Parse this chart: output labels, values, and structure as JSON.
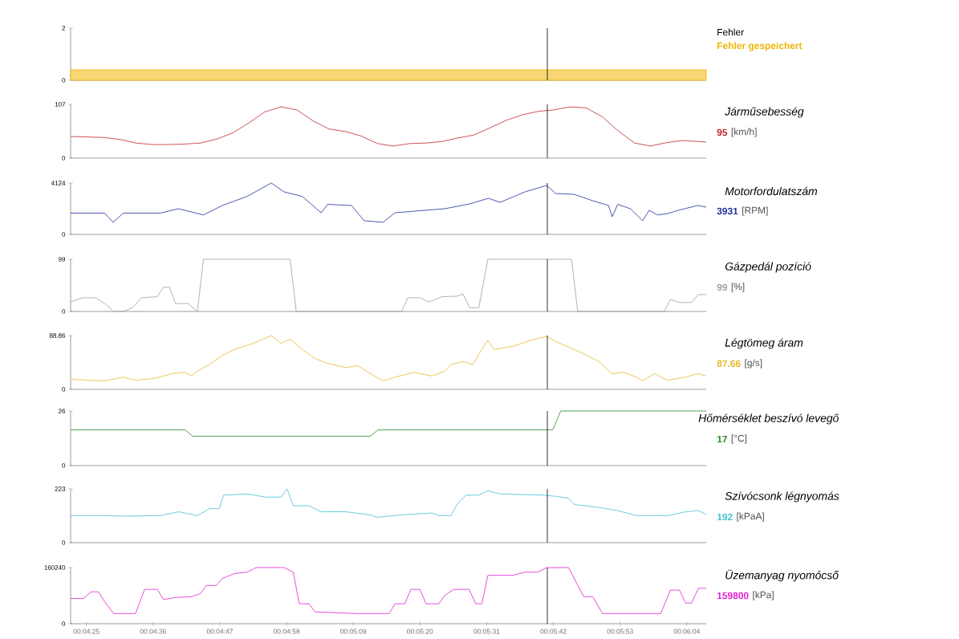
{
  "chart_data": [
    {
      "type": "area",
      "annotations": [
        "Fehler"
      ],
      "x": [
        262.4,
        367.2
      ],
      "xlim": [
        262.4,
        367.2
      ],
      "ylim": [
        0,
        2
      ],
      "yticks": [
        0,
        2
      ],
      "tick_labels": "y",
      "ref_lines": [
        {
          "axis": "x",
          "value": 341,
          "color": "#000000"
        }
      ],
      "series": [
        {
          "name": "Fehler gespeichert",
          "type": "area",
          "color": "#f0b400",
          "values": [
            0.4,
            0.4
          ]
        }
      ]
    },
    {
      "type": "line",
      "annotations": [
        "Járműsebesség",
        "95",
        "[km/h]"
      ],
      "xlim": [
        262.4,
        367.2
      ],
      "ylim": [
        0,
        107
      ],
      "yticks": [
        0,
        107
      ],
      "tick_labels": "y",
      "ref_lines": [
        {
          "axis": "x",
          "value": 341,
          "color": "#000000"
        }
      ],
      "x": [
        262.4,
        265.3,
        267.9,
        270.6,
        273.2,
        275.9,
        278.5,
        281.2,
        283.8,
        286.5,
        289.1,
        291.8,
        294.4,
        297.1,
        299.7,
        302.4,
        305.0,
        307.7,
        310.3,
        313.0,
        315.6,
        318.3,
        320.9,
        323.6,
        326.2,
        328.9,
        331.5,
        334.2,
        336.8,
        339.5,
        342.1,
        344.8,
        347.4,
        350.1,
        352.7,
        355.4,
        358.0,
        360.7,
        363.3,
        366.0,
        367.2
      ],
      "series": [
        {
          "color": "#c0282d",
          "values": [
            43,
            42,
            41,
            37,
            30,
            27,
            27,
            28,
            30,
            38,
            50,
            70,
            92,
            102,
            96,
            74,
            58,
            53,
            44,
            29,
            24,
            29,
            30,
            33,
            40,
            46,
            60,
            75,
            86,
            93,
            96,
            102,
            100,
            82,
            54,
            30,
            24,
            31,
            35,
            33,
            32
          ]
        }
      ]
    },
    {
      "type": "line",
      "annotations": [
        "Motorfordulatszám",
        "3931",
        "[RPM]"
      ],
      "xlim": [
        262.4,
        367.2
      ],
      "ylim": [
        0,
        4124
      ],
      "yticks": [
        0,
        4124
      ],
      "tick_labels": "y",
      "ref_lines": [
        {
          "axis": "x",
          "value": 341,
          "color": "#000000"
        }
      ],
      "x": [
        262.4,
        268.0,
        269.4,
        271.1,
        277.2,
        280.2,
        284.3,
        287.4,
        291.5,
        295.5,
        297.6,
        300.6,
        303.7,
        304.8,
        308.7,
        310.8,
        313.9,
        315.9,
        318.0,
        324.1,
        328.2,
        331.3,
        333.2,
        337.3,
        340.9,
        342.4,
        345.4,
        348.5,
        351.1,
        351.7,
        352.6,
        354.7,
        356.7,
        357.8,
        359.2,
        360.8,
        362.8,
        365.8,
        367.2
      ],
      "series": [
        {
          "color": "#1f2d9c",
          "values": [
            1710,
            1710,
            970,
            1710,
            1710,
            2060,
            1560,
            2320,
            3050,
            4124,
            3410,
            3050,
            1740,
            2410,
            2320,
            1100,
            970,
            1740,
            1820,
            2060,
            2450,
            2900,
            2570,
            3410,
            3931,
            3280,
            3220,
            2700,
            2320,
            1420,
            2410,
            2060,
            1100,
            1930,
            1560,
            1670,
            1960,
            2320,
            2190
          ]
        }
      ]
    },
    {
      "type": "line",
      "annotations": [
        "Gázpedál pozíció",
        "99",
        "[%]"
      ],
      "xlim": [
        262.4,
        367.2
      ],
      "ylim": [
        0,
        99
      ],
      "yticks": [
        0,
        99
      ],
      "tick_labels": "y",
      "ref_lines": [
        {
          "axis": "x",
          "value": 341,
          "color": "#000000"
        }
      ],
      "x": [
        262.4,
        264.4,
        266.5,
        268.0,
        269.5,
        271.1,
        272.6,
        274.1,
        276.7,
        277.7,
        278.7,
        279.7,
        281.8,
        283.3,
        284.3,
        298.6,
        299.6,
        317.0,
        318.0,
        320.0,
        321.5,
        323.6,
        326.1,
        327.1,
        328.2,
        329.7,
        331.2,
        345.0,
        346.0,
        360.3,
        361.3,
        362.8,
        364.8,
        365.9,
        367.2
      ],
      "series": [
        {
          "color": "#a0a0a0",
          "values": [
            18,
            26,
            26,
            15,
            0,
            0,
            7,
            26,
            28,
            46,
            46,
            15,
            15,
            0,
            99,
            99,
            0,
            0,
            26,
            26,
            18,
            28,
            29,
            33,
            7,
            7,
            99,
            99,
            0,
            0,
            23,
            17,
            17,
            32,
            32
          ]
        }
      ]
    },
    {
      "type": "line",
      "annotations": [
        "Légtömeg áram",
        "87.66",
        "[g/s]"
      ],
      "xlim": [
        262.4,
        367.2
      ],
      "ylim": [
        0,
        88.86
      ],
      "yticks": [
        0,
        88.86
      ],
      "tick_labels": "y",
      "ref_lines": [
        {
          "axis": "x",
          "value": 341,
          "color": "#000000"
        }
      ],
      "x": [
        262.4,
        265.0,
        268.0,
        271.1,
        273.1,
        276.2,
        279.2,
        281.3,
        282.3,
        283.3,
        285.3,
        287.4,
        289.4,
        292.5,
        295.5,
        297.1,
        298.6,
        300.6,
        302.7,
        304.7,
        307.8,
        309.8,
        311.8,
        313.9,
        315.9,
        319.0,
        322.0,
        324.1,
        325.1,
        327.1,
        328.7,
        330.2,
        331.2,
        332.2,
        335.3,
        338.3,
        340.9,
        342.4,
        346.5,
        349.5,
        351.6,
        353.6,
        355.7,
        356.7,
        358.7,
        360.8,
        363.8,
        365.9,
        367.2
      ],
      "series": [
        {
          "color": "#e8b828",
          "values": [
            17,
            15,
            14,
            20,
            15,
            18,
            26,
            28,
            22,
            30,
            41,
            56,
            66,
            76,
            88.86,
            76,
            83,
            66,
            51,
            43,
            36,
            39,
            26,
            14,
            20,
            28,
            22,
            30,
            41,
            46,
            41,
            66,
            81,
            66,
            71,
            81,
            87.66,
            79,
            61,
            46,
            26,
            28,
            20,
            14,
            26,
            15,
            20,
            26,
            22
          ]
        }
      ]
    },
    {
      "type": "line",
      "annotations": [
        "Hőmérséklet beszívó levegő",
        "17",
        "[°C]"
      ],
      "xlim": [
        262.4,
        367.2
      ],
      "ylim": [
        0,
        26
      ],
      "yticks": [
        0,
        26
      ],
      "tick_labels": "y",
      "ref_lines": [
        {
          "axis": "x",
          "value": 341,
          "color": "#000000"
        }
      ],
      "x": [
        262.4,
        281.3,
        282.5,
        311.8,
        313.1,
        341.9,
        343.2,
        367.2
      ],
      "series": [
        {
          "color": "#2a8a2a",
          "values": [
            17,
            17,
            14,
            14,
            17,
            17,
            26,
            26
          ]
        }
      ]
    },
    {
      "type": "line",
      "annotations": [
        "Szívócsonk légnyomás",
        "192",
        "[kPaA]"
      ],
      "xlim": [
        262.4,
        367.2
      ],
      "ylim": [
        0,
        223
      ],
      "yticks": [
        0,
        223
      ],
      "tick_labels": "y",
      "ref_lines": [
        {
          "axis": "x",
          "value": 341,
          "color": "#000000"
        }
      ],
      "x": [
        262.4,
        268.0,
        271.1,
        277.2,
        280.2,
        283.3,
        285.3,
        286.9,
        287.6,
        291.5,
        294.5,
        297.1,
        298.1,
        299.1,
        301.7,
        303.7,
        307.8,
        311.8,
        312.9,
        316.9,
        322.0,
        323.1,
        325.1,
        326.1,
        327.6,
        329.7,
        331.2,
        333.2,
        340.4,
        342.4,
        344.5,
        345.5,
        349.5,
        352.6,
        355.7,
        360.8,
        363.8,
        365.9,
        367.2
      ],
      "series": [
        {
          "color": "#40c0d8",
          "values": [
            112,
            112,
            110,
            112,
            128,
            112,
            141,
            141,
            197,
            202,
            189,
            189,
            223,
            153,
            153,
            128,
            128,
            115,
            105,
            115,
            123,
            112,
            112,
            158,
            197,
            197,
            215,
            202,
            197,
            192,
            184,
            158,
            146,
            133,
            112,
            112,
            128,
            133,
            117
          ]
        }
      ]
    },
    {
      "type": "line",
      "annotations": [
        "Üzemanyag nyomócső",
        "159800",
        "[kPa]"
      ],
      "xlim": [
        262.4,
        367.2
      ],
      "ylim": [
        0,
        160240
      ],
      "yticks": [
        0,
        160240
      ],
      "xticks": [
        {
          "value": 265,
          "label": "00:04:25"
        },
        {
          "value": 276,
          "label": "00:04:36"
        },
        {
          "value": 287,
          "label": "00:04:47"
        },
        {
          "value": 298,
          "label": "00:04:58"
        },
        {
          "value": 309,
          "label": "00:05:09"
        },
        {
          "value": 320,
          "label": "00:05:20"
        },
        {
          "value": 331,
          "label": "00:05:31"
        },
        {
          "value": 342,
          "label": "00:05:42"
        },
        {
          "value": 353,
          "label": "00:05:53"
        },
        {
          "value": 364,
          "label": "00:06:04"
        }
      ],
      "ref_lines": [
        {
          "axis": "x",
          "value": 341,
          "color": "#000000"
        }
      ],
      "x": [
        262.4,
        264.5,
        265.8,
        267.0,
        268.0,
        269.5,
        273.1,
        274.6,
        276.7,
        277.7,
        279.7,
        282.3,
        283.8,
        284.8,
        286.4,
        287.4,
        289.4,
        291.5,
        293.0,
        297.6,
        299.1,
        300.1,
        301.7,
        302.7,
        306.7,
        309.8,
        314.9,
        315.9,
        317.5,
        318.5,
        320.0,
        321.0,
        323.1,
        324.1,
        325.6,
        328.1,
        329.2,
        330.2,
        331.2,
        335.3,
        337.3,
        339.4,
        340.9,
        344.5,
        347.0,
        348.5,
        350.1,
        359.7,
        361.3,
        362.8,
        363.8,
        364.8,
        365.9,
        367.2
      ],
      "series": [
        {
          "color": "#e020d0",
          "values": [
            72000,
            72000,
            91000,
            91000,
            63000,
            29000,
            29000,
            98000,
            98000,
            69000,
            75000,
            77000,
            86000,
            109000,
            109000,
            129000,
            143000,
            147000,
            160240,
            160240,
            147000,
            57000,
            57000,
            34000,
            31000,
            29000,
            29000,
            57000,
            57000,
            98000,
            98000,
            57000,
            57000,
            81000,
            98000,
            98000,
            57000,
            57000,
            138000,
            138000,
            147000,
            147000,
            159800,
            160240,
            77000,
            77000,
            29000,
            29000,
            96000,
            96000,
            59000,
            59000,
            101000,
            101000
          ]
        }
      ]
    }
  ]
}
